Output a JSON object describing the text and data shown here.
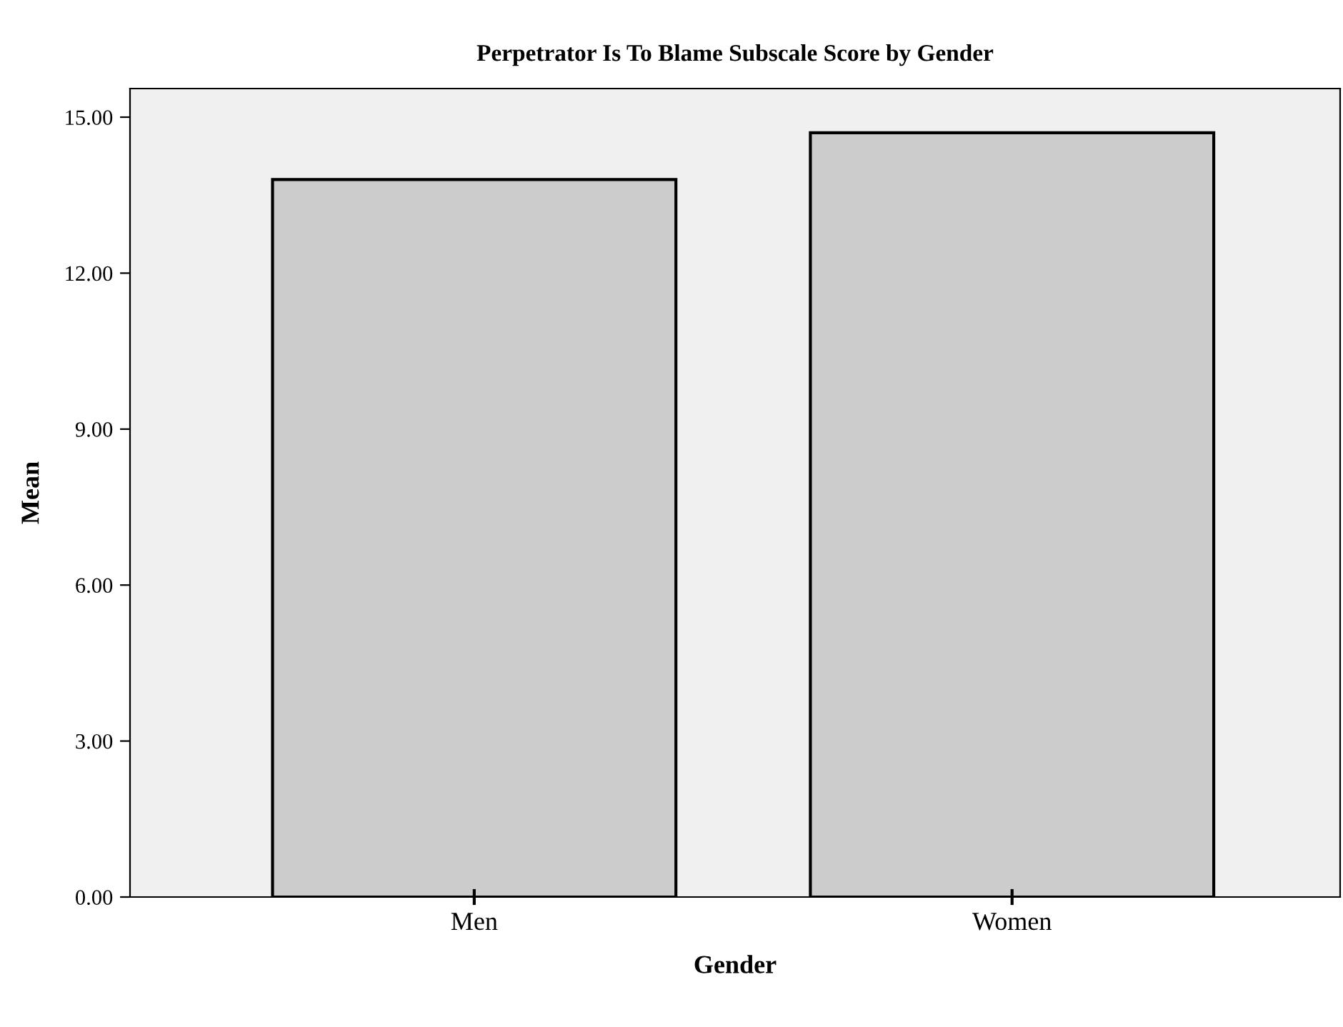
{
  "chart_data": {
    "type": "bar",
    "title": "Perpetrator Is To Blame Subscale Score by Gender",
    "xlabel": "Gender",
    "ylabel": "Mean",
    "categories": [
      "Men",
      "Women"
    ],
    "values": [
      13.8,
      14.7
    ],
    "color": "#cccccc",
    "ylim": [
      0,
      15.55
    ],
    "yticks": [
      {
        "value": 0,
        "label": "0.00"
      },
      {
        "value": 3,
        "label": "3.00"
      },
      {
        "value": 6,
        "label": "6.00"
      },
      {
        "value": 9,
        "label": "9.00"
      },
      {
        "value": 12,
        "label": "12.00"
      },
      {
        "value": 15,
        "label": "15.00"
      }
    ],
    "grid": false,
    "legend": false
  }
}
